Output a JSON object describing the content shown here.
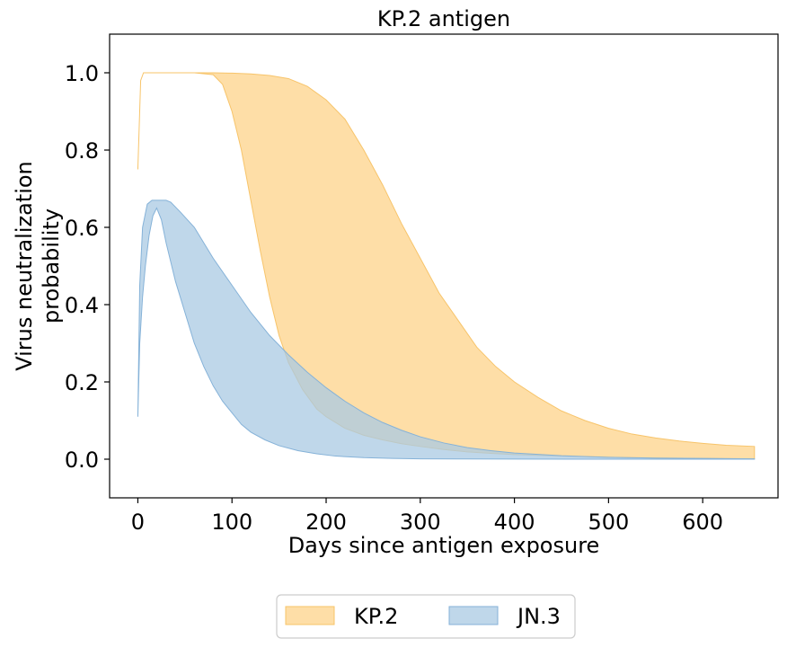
{
  "chart_data": {
    "type": "area",
    "title": "KP.2 antigen",
    "xlabel": "Days since antigen exposure",
    "ylabel": [
      "Virus neutralization",
      "probability"
    ],
    "xlim": [
      -30,
      680
    ],
    "ylim": [
      -0.1,
      1.1
    ],
    "xticks": [
      0,
      100,
      200,
      300,
      400,
      500,
      600
    ],
    "yticks": [
      0.0,
      0.2,
      0.4,
      0.6,
      0.8,
      1.0
    ],
    "xtick_labels": [
      "0",
      "100",
      "200",
      "300",
      "400",
      "500",
      "600"
    ],
    "ytick_labels": [
      "0.0",
      "0.2",
      "0.4",
      "0.6",
      "0.8",
      "1.0"
    ],
    "grid": false,
    "legend_position": "bottom-center, below plot, 2 columns",
    "series": [
      {
        "name": "KP.2",
        "color": "#fdd38a",
        "edge_color": "#f7c46a",
        "upper": {
          "x": [
            0,
            3,
            6,
            10,
            20,
            40,
            60,
            80,
            100,
            120,
            140,
            160,
            180,
            200,
            220,
            240,
            260,
            280,
            300,
            320,
            340,
            360,
            380,
            400,
            425,
            450,
            475,
            500,
            525,
            550,
            575,
            600,
            625,
            655
          ],
          "y": [
            0.75,
            0.98,
            1.0,
            1.0,
            1.0,
            1.0,
            1.0,
            1.0,
            0.999,
            0.997,
            0.993,
            0.985,
            0.965,
            0.93,
            0.88,
            0.8,
            0.71,
            0.61,
            0.52,
            0.43,
            0.36,
            0.29,
            0.24,
            0.2,
            0.16,
            0.125,
            0.1,
            0.08,
            0.065,
            0.055,
            0.047,
            0.041,
            0.036,
            0.033
          ]
        },
        "lower": {
          "x": [
            0,
            3,
            6,
            10,
            20,
            40,
            60,
            80,
            90,
            100,
            110,
            120,
            130,
            140,
            150,
            160,
            175,
            190,
            200,
            220,
            240,
            260,
            280,
            300,
            325,
            350,
            375,
            400,
            450,
            500,
            550,
            600,
            655
          ],
          "y": [
            0.75,
            0.98,
            1.0,
            1.0,
            1.0,
            1.0,
            1.0,
            0.995,
            0.97,
            0.9,
            0.8,
            0.67,
            0.54,
            0.42,
            0.32,
            0.25,
            0.18,
            0.13,
            0.11,
            0.08,
            0.062,
            0.05,
            0.04,
            0.033,
            0.025,
            0.019,
            0.015,
            0.012,
            0.008,
            0.005,
            0.003,
            0.002,
            0.001
          ]
        }
      },
      {
        "name": "JN.3",
        "color": "#a9c9e3",
        "edge_color": "#85b2d8",
        "upper": {
          "x": [
            0,
            2,
            5,
            10,
            15,
            20,
            25,
            30,
            35,
            45,
            60,
            80,
            100,
            120,
            140,
            160,
            180,
            200,
            220,
            240,
            260,
            280,
            300,
            325,
            350,
            375,
            400,
            450,
            500,
            550,
            600,
            655
          ],
          "y": [
            0.11,
            0.45,
            0.6,
            0.66,
            0.67,
            0.67,
            0.67,
            0.67,
            0.665,
            0.64,
            0.6,
            0.52,
            0.45,
            0.38,
            0.32,
            0.27,
            0.225,
            0.185,
            0.15,
            0.12,
            0.095,
            0.075,
            0.058,
            0.042,
            0.03,
            0.022,
            0.016,
            0.009,
            0.005,
            0.003,
            0.002,
            0.001
          ]
        },
        "lower": {
          "x": [
            0,
            2,
            5,
            8,
            12,
            16,
            20,
            25,
            30,
            40,
            50,
            60,
            70,
            80,
            90,
            100,
            110,
            120,
            135,
            150,
            170,
            190,
            210,
            240,
            270,
            300,
            350,
            400,
            500,
            655
          ],
          "y": [
            0.11,
            0.3,
            0.42,
            0.5,
            0.58,
            0.63,
            0.65,
            0.62,
            0.56,
            0.46,
            0.38,
            0.3,
            0.24,
            0.19,
            0.15,
            0.12,
            0.09,
            0.07,
            0.05,
            0.035,
            0.022,
            0.014,
            0.008,
            0.004,
            0.002,
            0.001,
            0.0005,
            0.0002,
            0.0,
            0.0
          ]
        }
      }
    ]
  }
}
